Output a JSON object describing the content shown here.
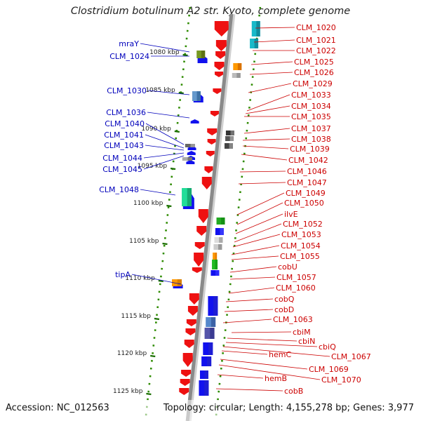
{
  "title": "Clostridium botulinum A2 str. Kyoto, complete genome",
  "accession": "Accession: NC_012563",
  "topology": "Topology: circular; Length: 4,155,278 bp; Genes: 3,977",
  "colors": {
    "left_label": "#0000bb",
    "right_label": "#cc0000",
    "backbone": "#8a8a8a",
    "dots": "#2e8b00",
    "tick": "#1a6e00",
    "forward_arrow": "#1111ee",
    "reverse_arrow": "#ee1111"
  },
  "scale": {
    "ticks": [
      "1080 kbp",
      "1085 kbp",
      "1090 kbp",
      "1095 kbp",
      "1100 kbp",
      "1105 kbp",
      "1110 kbp",
      "1115 kbp",
      "1120 kbp",
      "1125 kbp"
    ]
  },
  "left_genes": [
    "mraY",
    "CLM_1024",
    "CLM_1030",
    "CLM_1036",
    "CLM_1040",
    "CLM_1041",
    "CLM_1043",
    "CLM_1044",
    "CLM_1045",
    "CLM_1048",
    "tipA"
  ],
  "right_genes": [
    "CLM_1020",
    "CLM_1021",
    "CLM_1022",
    "CLM_1025",
    "CLM_1026",
    "CLM_1029",
    "CLM_1033",
    "CLM_1034",
    "CLM_1035",
    "CLM_1037",
    "CLM_1038",
    "CLM_1039",
    "CLM_1042",
    "CLM_1046",
    "CLM_1047",
    "CLM_1049",
    "CLM_1050",
    "ilvE",
    "CLM_1052",
    "CLM_1053",
    "CLM_1054",
    "CLM_1055",
    "cobU",
    "CLM_1057",
    "CLM_1060",
    "cobQ",
    "cobD",
    "CLM_1063",
    "cbiM",
    "cbiN",
    "cbiQ",
    "CLM_1067",
    "hemC",
    "CLM_1069",
    "CLM_1070",
    "hemB",
    "cobB"
  ]
}
